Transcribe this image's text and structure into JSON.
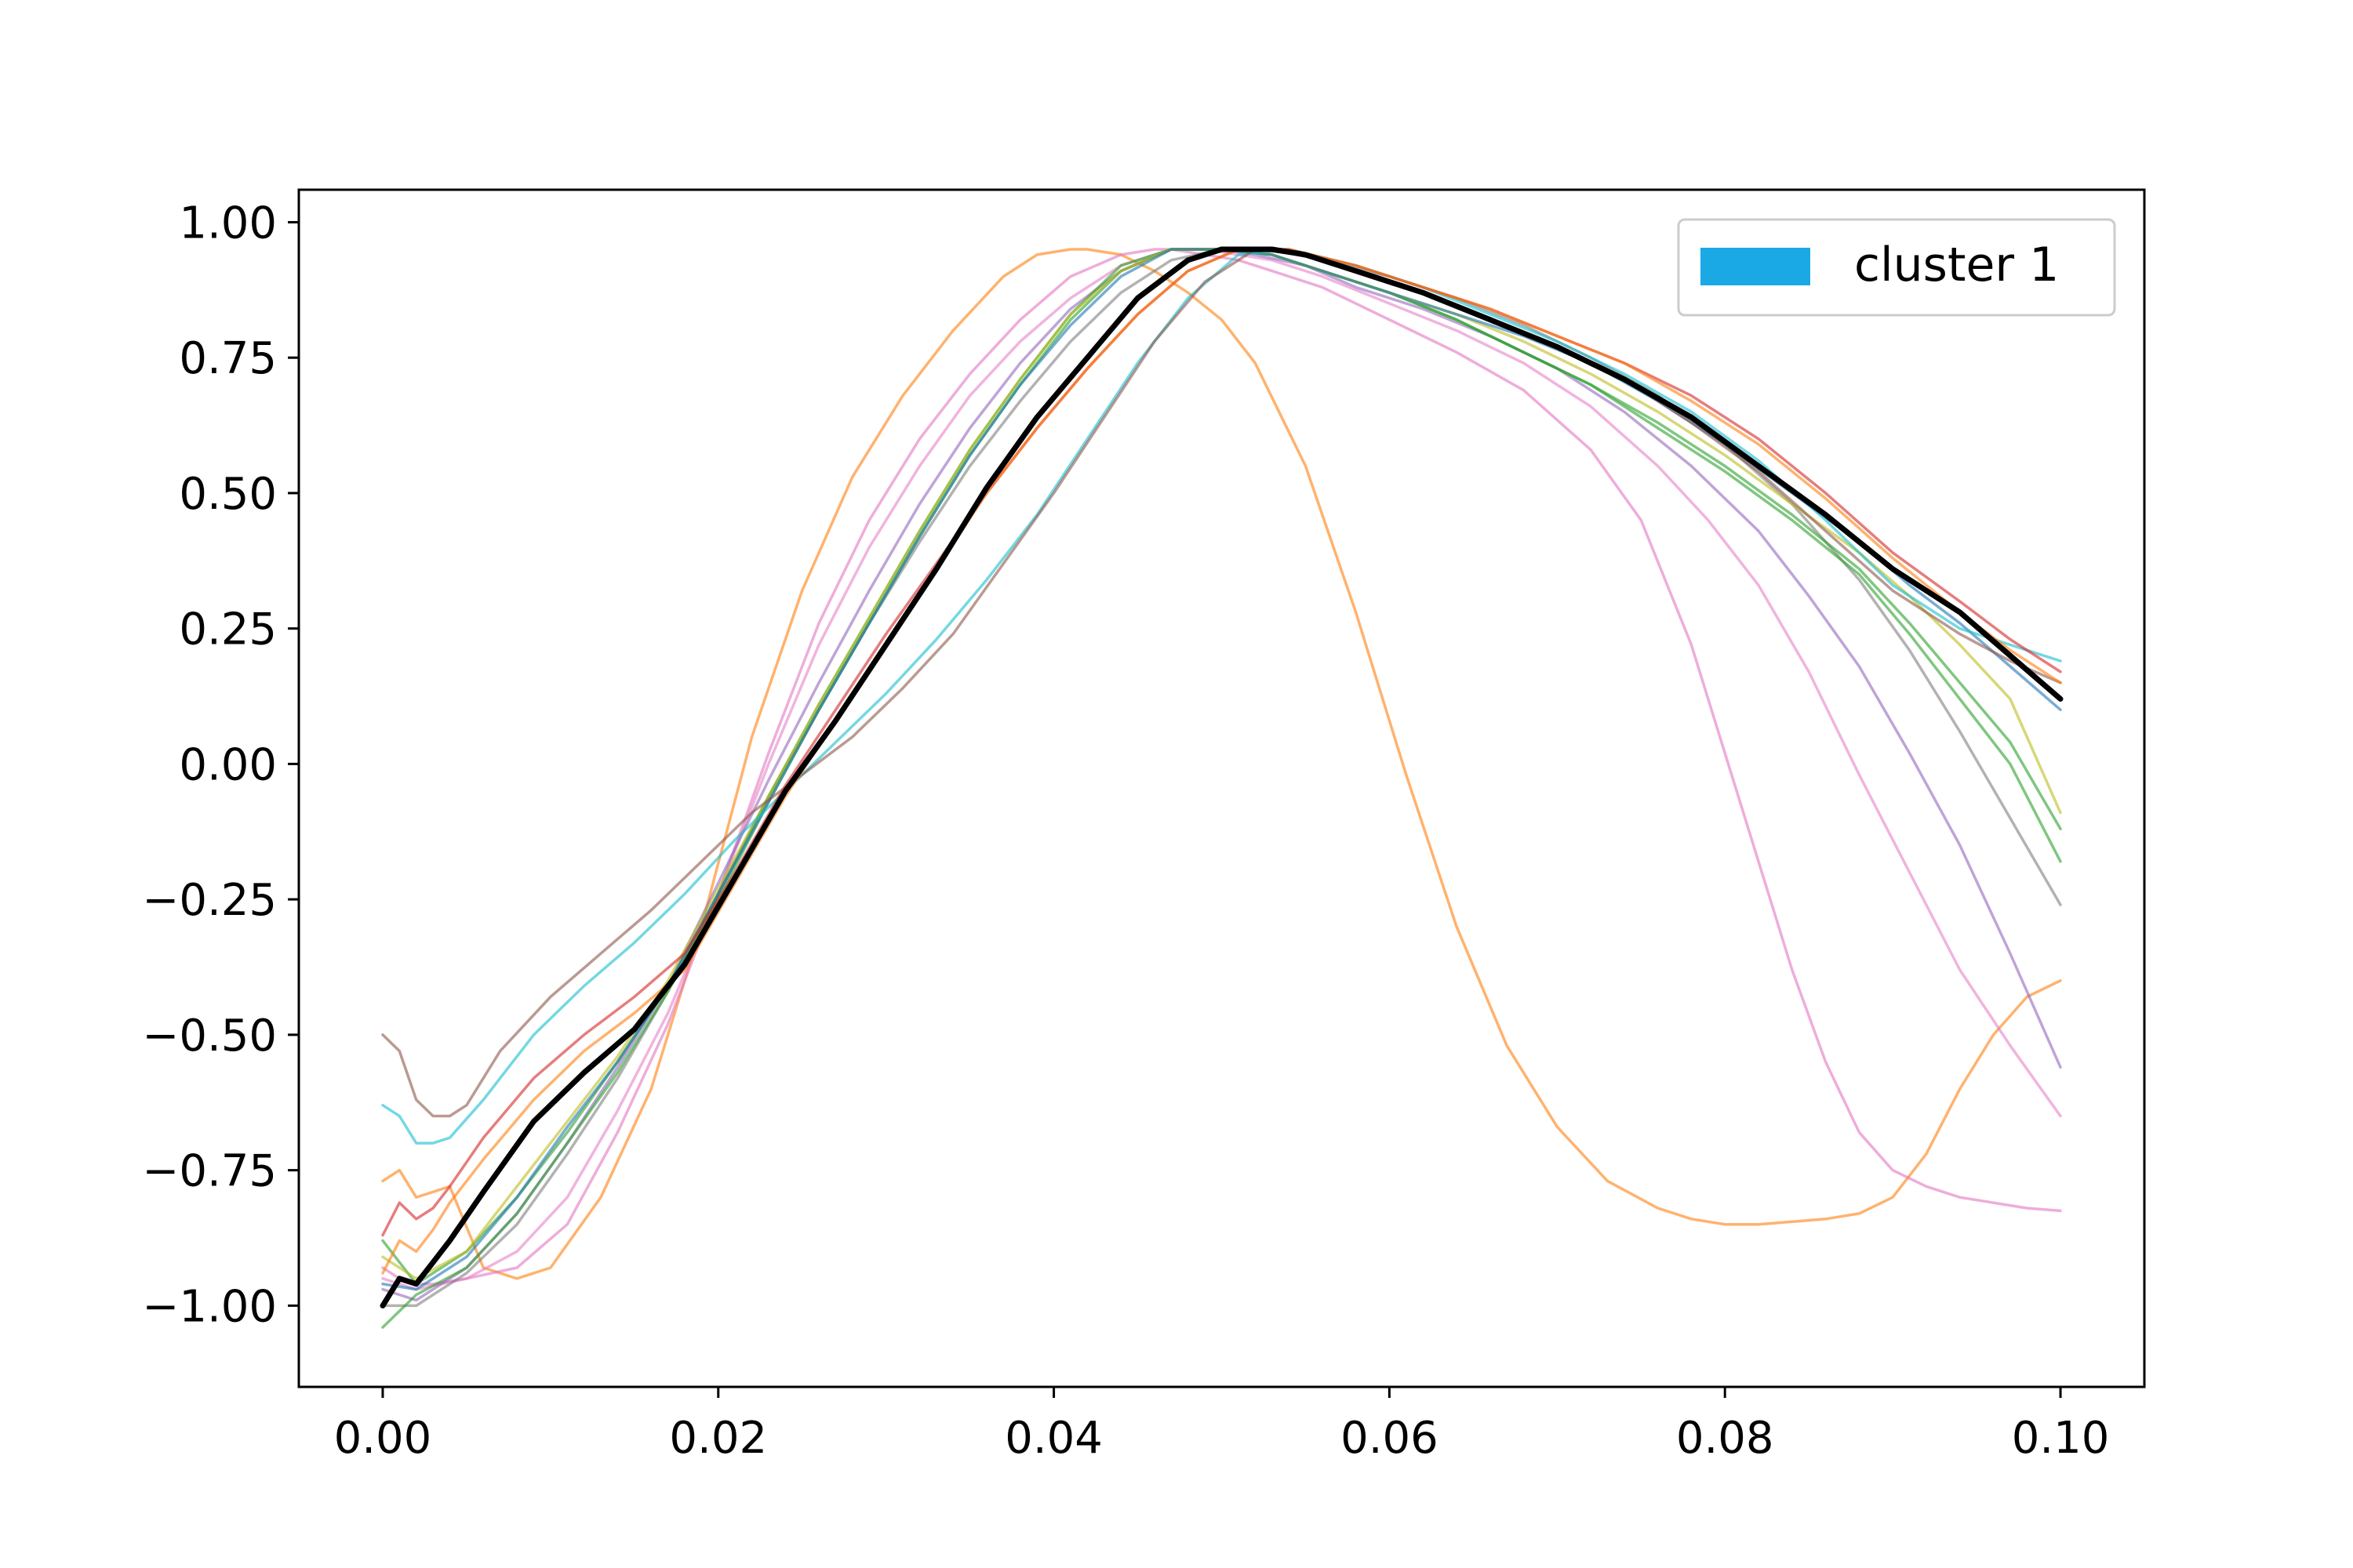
{
  "chart_data": {
    "type": "line",
    "title": "",
    "xlabel": "",
    "ylabel": "",
    "xlim": [
      -0.005,
      0.105
    ],
    "ylim": [
      -1.15,
      1.06
    ],
    "x_ticks": [
      "0.00",
      "0.02",
      "0.04",
      "0.06",
      "0.08",
      "0.10"
    ],
    "x_tick_values": [
      0.0,
      0.02,
      0.04,
      0.06,
      0.08,
      0.1
    ],
    "y_ticks": [
      "1.00",
      "0.75",
      "0.50",
      "0.25",
      "0.00",
      "−0.25",
      "−0.50",
      "−0.75",
      "−1.00"
    ],
    "y_tick_values": [
      1.0,
      0.75,
      0.5,
      0.25,
      0.0,
      -0.25,
      -0.5,
      -0.75,
      -1.0
    ],
    "grid": false,
    "legend": {
      "placement": "top-right",
      "entries": [
        {
          "label": "cluster 1",
          "color": "#1ba9e6"
        }
      ]
    },
    "series": [
      {
        "color": "#ff7f0e",
        "alpha": 0.6,
        "x": [
          0,
          0.001,
          0.002,
          0.003,
          0.004,
          0.006,
          0.008,
          0.01,
          0.013,
          0.016,
          0.019,
          0.022,
          0.025,
          0.028,
          0.031,
          0.034,
          0.037,
          0.039,
          0.041,
          0.042,
          0.044,
          0.046,
          0.048,
          0.05,
          0.052,
          0.055,
          0.058,
          0.061,
          0.064,
          0.067,
          0.07,
          0.073,
          0.076,
          0.078,
          0.08,
          0.082,
          0.084,
          0.086,
          0.088,
          0.09,
          0.092,
          0.094,
          0.096,
          0.098,
          0.1
        ],
        "y": [
          -0.77,
          -0.75,
          -0.8,
          -0.79,
          -0.78,
          -0.93,
          -0.95,
          -0.93,
          -0.8,
          -0.6,
          -0.3,
          0.05,
          0.32,
          0.53,
          0.68,
          0.8,
          0.9,
          0.94,
          0.95,
          0.95,
          0.94,
          0.91,
          0.87,
          0.82,
          0.74,
          0.55,
          0.28,
          -0.02,
          -0.3,
          -0.52,
          -0.67,
          -0.77,
          -0.82,
          -0.84,
          -0.85,
          -0.85,
          -0.845,
          -0.84,
          -0.83,
          -0.8,
          -0.72,
          -0.6,
          -0.5,
          -0.43,
          -0.4
        ]
      },
      {
        "color": "#e377c2",
        "alpha": 0.6,
        "x": [
          0,
          0.001,
          0.002,
          0.003,
          0.005,
          0.008,
          0.011,
          0.014,
          0.017,
          0.02,
          0.023,
          0.026,
          0.029,
          0.032,
          0.035,
          0.038,
          0.041,
          0.044,
          0.046,
          0.047,
          0.049,
          0.051,
          0.053,
          0.056,
          0.06,
          0.064,
          0.068,
          0.072,
          0.075,
          0.078,
          0.081,
          0.084,
          0.086,
          0.088,
          0.09,
          0.092,
          0.094,
          0.096,
          0.098,
          0.1
        ],
        "y": [
          -0.93,
          -0.95,
          -0.96,
          -0.96,
          -0.95,
          -0.93,
          -0.85,
          -0.68,
          -0.48,
          -0.24,
          0.02,
          0.26,
          0.45,
          0.6,
          0.72,
          0.82,
          0.9,
          0.94,
          0.95,
          0.95,
          0.94,
          0.93,
          0.91,
          0.88,
          0.82,
          0.76,
          0.69,
          0.58,
          0.45,
          0.22,
          -0.08,
          -0.38,
          -0.55,
          -0.68,
          -0.75,
          -0.78,
          -0.8,
          -0.81,
          -0.82,
          -0.825
        ]
      },
      {
        "color": "#e377c2",
        "alpha": 0.55,
        "x": [
          0,
          0.002,
          0.005,
          0.008,
          0.011,
          0.014,
          0.017,
          0.02,
          0.023,
          0.026,
          0.029,
          0.032,
          0.035,
          0.038,
          0.041,
          0.044,
          0.047,
          0.049,
          0.051,
          0.053,
          0.056,
          0.06,
          0.064,
          0.068,
          0.072,
          0.076,
          0.079,
          0.082,
          0.085,
          0.088,
          0.091,
          0.094,
          0.097,
          0.1
        ],
        "y": [
          -0.95,
          -0.97,
          -0.95,
          -0.9,
          -0.8,
          -0.64,
          -0.46,
          -0.24,
          0.0,
          0.22,
          0.4,
          0.55,
          0.68,
          0.78,
          0.86,
          0.92,
          0.95,
          0.95,
          0.94,
          0.93,
          0.9,
          0.85,
          0.8,
          0.74,
          0.66,
          0.55,
          0.45,
          0.33,
          0.17,
          -0.02,
          -0.2,
          -0.38,
          -0.52,
          -0.65
        ]
      },
      {
        "color": "#9467bd",
        "alpha": 0.6,
        "x": [
          0,
          0.002,
          0.005,
          0.008,
          0.011,
          0.014,
          0.017,
          0.02,
          0.023,
          0.026,
          0.029,
          0.032,
          0.035,
          0.038,
          0.041,
          0.044,
          0.047,
          0.05,
          0.052,
          0.055,
          0.058,
          0.062,
          0.066,
          0.07,
          0.074,
          0.078,
          0.082,
          0.085,
          0.088,
          0.091,
          0.094,
          0.097,
          0.1
        ],
        "y": [
          -0.97,
          -0.99,
          -0.93,
          -0.83,
          -0.7,
          -0.56,
          -0.41,
          -0.22,
          -0.03,
          0.15,
          0.32,
          0.48,
          0.62,
          0.74,
          0.84,
          0.91,
          0.95,
          0.95,
          0.94,
          0.92,
          0.88,
          0.84,
          0.79,
          0.73,
          0.65,
          0.55,
          0.43,
          0.31,
          0.18,
          0.02,
          -0.15,
          -0.35,
          -0.56
        ]
      },
      {
        "color": "#7f7f7f",
        "alpha": 0.6,
        "x": [
          0,
          0.002,
          0.005,
          0.008,
          0.011,
          0.014,
          0.017,
          0.02,
          0.023,
          0.026,
          0.029,
          0.032,
          0.035,
          0.038,
          0.041,
          0.044,
          0.047,
          0.05,
          0.053,
          0.056,
          0.06,
          0.064,
          0.068,
          0.072,
          0.076,
          0.08,
          0.084,
          0.088,
          0.091,
          0.094,
          0.097,
          0.1
        ],
        "y": [
          -1.0,
          -1.0,
          -0.94,
          -0.85,
          -0.72,
          -0.58,
          -0.42,
          -0.24,
          -0.06,
          0.1,
          0.26,
          0.41,
          0.55,
          0.67,
          0.78,
          0.87,
          0.93,
          0.95,
          0.95,
          0.93,
          0.9,
          0.86,
          0.81,
          0.75,
          0.68,
          0.59,
          0.48,
          0.34,
          0.21,
          0.06,
          -0.1,
          -0.26
        ]
      },
      {
        "color": "#2ca02c",
        "alpha": 0.6,
        "x": [
          0,
          0.002,
          0.005,
          0.008,
          0.011,
          0.014,
          0.017,
          0.02,
          0.023,
          0.026,
          0.029,
          0.032,
          0.035,
          0.038,
          0.041,
          0.044,
          0.047,
          0.05,
          0.053,
          0.056,
          0.06,
          0.064,
          0.068,
          0.072,
          0.076,
          0.08,
          0.084,
          0.088,
          0.091,
          0.094,
          0.097,
          0.1
        ],
        "y": [
          -1.04,
          -0.98,
          -0.93,
          -0.83,
          -0.7,
          -0.57,
          -0.42,
          -0.25,
          -0.07,
          0.1,
          0.26,
          0.42,
          0.57,
          0.7,
          0.82,
          0.91,
          0.95,
          0.95,
          0.94,
          0.91,
          0.87,
          0.82,
          0.76,
          0.7,
          0.62,
          0.54,
          0.45,
          0.35,
          0.24,
          0.12,
          0.0,
          -0.18
        ]
      },
      {
        "color": "#2ca02c",
        "alpha": 0.6,
        "x": [
          0,
          0.002,
          0.005,
          0.008,
          0.011,
          0.014,
          0.017,
          0.02,
          0.023,
          0.026,
          0.029,
          0.032,
          0.035,
          0.038,
          0.041,
          0.044,
          0.047,
          0.05,
          0.053,
          0.056,
          0.06,
          0.064,
          0.068,
          0.072,
          0.076,
          0.08,
          0.084,
          0.088,
          0.091,
          0.094,
          0.097,
          0.1
        ],
        "y": [
          -0.88,
          -0.96,
          -0.9,
          -0.8,
          -0.68,
          -0.55,
          -0.41,
          -0.24,
          -0.06,
          0.11,
          0.27,
          0.43,
          0.58,
          0.71,
          0.83,
          0.92,
          0.95,
          0.95,
          0.94,
          0.91,
          0.87,
          0.82,
          0.76,
          0.7,
          0.63,
          0.55,
          0.46,
          0.36,
          0.26,
          0.15,
          0.04,
          -0.12
        ]
      },
      {
        "color": "#bcbd22",
        "alpha": 0.6,
        "x": [
          0,
          0.002,
          0.005,
          0.008,
          0.011,
          0.014,
          0.017,
          0.02,
          0.023,
          0.026,
          0.029,
          0.032,
          0.035,
          0.038,
          0.041,
          0.044,
          0.047,
          0.05,
          0.053,
          0.056,
          0.06,
          0.064,
          0.068,
          0.072,
          0.076,
          0.08,
          0.084,
          0.088,
          0.091,
          0.094,
          0.097,
          0.1
        ],
        "y": [
          -0.91,
          -0.95,
          -0.9,
          -0.78,
          -0.66,
          -0.54,
          -0.4,
          -0.23,
          -0.06,
          0.11,
          0.27,
          0.43,
          0.58,
          0.71,
          0.83,
          0.91,
          0.95,
          0.95,
          0.94,
          0.91,
          0.87,
          0.83,
          0.78,
          0.72,
          0.65,
          0.57,
          0.48,
          0.39,
          0.31,
          0.22,
          0.12,
          -0.09
        ]
      },
      {
        "color": "#1f77b4",
        "alpha": 0.6,
        "x": [
          0,
          0.002,
          0.005,
          0.008,
          0.011,
          0.014,
          0.017,
          0.02,
          0.023,
          0.026,
          0.029,
          0.032,
          0.035,
          0.038,
          0.041,
          0.044,
          0.047,
          0.05,
          0.053,
          0.056,
          0.06,
          0.064,
          0.068,
          0.072,
          0.076,
          0.08,
          0.084,
          0.088,
          0.091,
          0.094,
          0.097,
          0.1
        ],
        "y": [
          -0.96,
          -0.97,
          -0.91,
          -0.8,
          -0.67,
          -0.55,
          -0.41,
          -0.24,
          -0.07,
          0.1,
          0.26,
          0.42,
          0.57,
          0.7,
          0.81,
          0.9,
          0.95,
          0.95,
          0.94,
          0.91,
          0.87,
          0.83,
          0.79,
          0.74,
          0.67,
          0.59,
          0.5,
          0.41,
          0.33,
          0.26,
          0.18,
          0.1
        ]
      },
      {
        "color": "#17becf",
        "alpha": 0.6,
        "x": [
          0,
          0.001,
          0.002,
          0.003,
          0.004,
          0.006,
          0.009,
          0.012,
          0.015,
          0.018,
          0.021,
          0.024,
          0.027,
          0.03,
          0.033,
          0.036,
          0.039,
          0.042,
          0.045,
          0.048,
          0.051,
          0.054,
          0.058,
          0.062,
          0.066,
          0.07,
          0.074,
          0.078,
          0.082,
          0.086,
          0.09,
          0.094,
          0.097,
          0.1
        ],
        "y": [
          -0.63,
          -0.65,
          -0.7,
          -0.7,
          -0.69,
          -0.62,
          -0.5,
          -0.41,
          -0.33,
          -0.24,
          -0.14,
          -0.05,
          0.04,
          0.13,
          0.23,
          0.34,
          0.46,
          0.6,
          0.74,
          0.86,
          0.94,
          0.95,
          0.92,
          0.88,
          0.83,
          0.78,
          0.72,
          0.65,
          0.56,
          0.45,
          0.33,
          0.25,
          0.22,
          0.19
        ]
      },
      {
        "color": "#8c564b",
        "alpha": 0.6,
        "x": [
          0,
          0.001,
          0.002,
          0.003,
          0.004,
          0.005,
          0.007,
          0.01,
          0.013,
          0.016,
          0.019,
          0.022,
          0.025,
          0.028,
          0.031,
          0.034,
          0.037,
          0.04,
          0.043,
          0.046,
          0.049,
          0.052,
          0.055,
          0.058,
          0.062,
          0.066,
          0.07,
          0.074,
          0.078,
          0.082,
          0.086,
          0.09,
          0.094,
          0.097,
          0.1
        ],
        "y": [
          -0.5,
          -0.53,
          -0.62,
          -0.65,
          -0.65,
          -0.63,
          -0.53,
          -0.43,
          -0.35,
          -0.27,
          -0.18,
          -0.09,
          -0.02,
          0.05,
          0.14,
          0.24,
          0.37,
          0.5,
          0.64,
          0.78,
          0.89,
          0.95,
          0.94,
          0.91,
          0.87,
          0.82,
          0.77,
          0.71,
          0.63,
          0.54,
          0.43,
          0.32,
          0.24,
          0.19,
          0.15
        ]
      },
      {
        "color": "#d62728",
        "alpha": 0.6,
        "x": [
          0,
          0.001,
          0.002,
          0.003,
          0.004,
          0.006,
          0.009,
          0.012,
          0.015,
          0.018,
          0.021,
          0.024,
          0.027,
          0.03,
          0.033,
          0.036,
          0.039,
          0.042,
          0.045,
          0.048,
          0.051,
          0.054,
          0.058,
          0.062,
          0.066,
          0.07,
          0.074,
          0.078,
          0.082,
          0.086,
          0.09,
          0.094,
          0.097,
          0.1
        ],
        "y": [
          -0.87,
          -0.81,
          -0.84,
          -0.82,
          -0.78,
          -0.69,
          -0.58,
          -0.5,
          -0.43,
          -0.35,
          -0.2,
          -0.04,
          0.1,
          0.24,
          0.37,
          0.5,
          0.62,
          0.73,
          0.83,
          0.91,
          0.95,
          0.95,
          0.92,
          0.88,
          0.84,
          0.79,
          0.74,
          0.68,
          0.6,
          0.5,
          0.39,
          0.3,
          0.23,
          0.17
        ]
      },
      {
        "color": "#ff7f0e",
        "alpha": 0.6,
        "x": [
          0,
          0.001,
          0.002,
          0.003,
          0.004,
          0.006,
          0.009,
          0.012,
          0.015,
          0.018,
          0.021,
          0.024,
          0.027,
          0.03,
          0.033,
          0.036,
          0.039,
          0.042,
          0.045,
          0.048,
          0.051,
          0.054,
          0.058,
          0.062,
          0.066,
          0.07,
          0.074,
          0.078,
          0.082,
          0.086,
          0.09,
          0.094,
          0.097,
          0.1
        ],
        "y": [
          -0.94,
          -0.88,
          -0.9,
          -0.86,
          -0.81,
          -0.73,
          -0.62,
          -0.53,
          -0.46,
          -0.38,
          -0.22,
          -0.06,
          0.08,
          0.22,
          0.36,
          0.5,
          0.62,
          0.73,
          0.83,
          0.91,
          0.95,
          0.95,
          0.92,
          0.88,
          0.84,
          0.79,
          0.74,
          0.67,
          0.59,
          0.49,
          0.38,
          0.28,
          0.21,
          0.15
        ]
      },
      {
        "color": "#000000",
        "alpha": 1.0,
        "width": 7,
        "x": [
          0,
          0.001,
          0.002,
          0.003,
          0.004,
          0.006,
          0.009,
          0.012,
          0.015,
          0.018,
          0.021,
          0.024,
          0.027,
          0.03,
          0.033,
          0.036,
          0.039,
          0.042,
          0.045,
          0.048,
          0.05,
          0.052,
          0.053,
          0.055,
          0.058,
          0.062,
          0.066,
          0.07,
          0.074,
          0.078,
          0.082,
          0.086,
          0.09,
          0.094,
          0.097,
          0.1
        ],
        "y": [
          -1.0,
          -0.95,
          -0.96,
          -0.92,
          -0.88,
          -0.79,
          -0.66,
          -0.57,
          -0.49,
          -0.37,
          -0.21,
          -0.05,
          0.08,
          0.22,
          0.36,
          0.51,
          0.64,
          0.75,
          0.86,
          0.93,
          0.95,
          0.95,
          0.95,
          0.94,
          0.91,
          0.87,
          0.82,
          0.77,
          0.71,
          0.64,
          0.55,
          0.46,
          0.36,
          0.28,
          0.2,
          0.12
        ]
      }
    ]
  }
}
